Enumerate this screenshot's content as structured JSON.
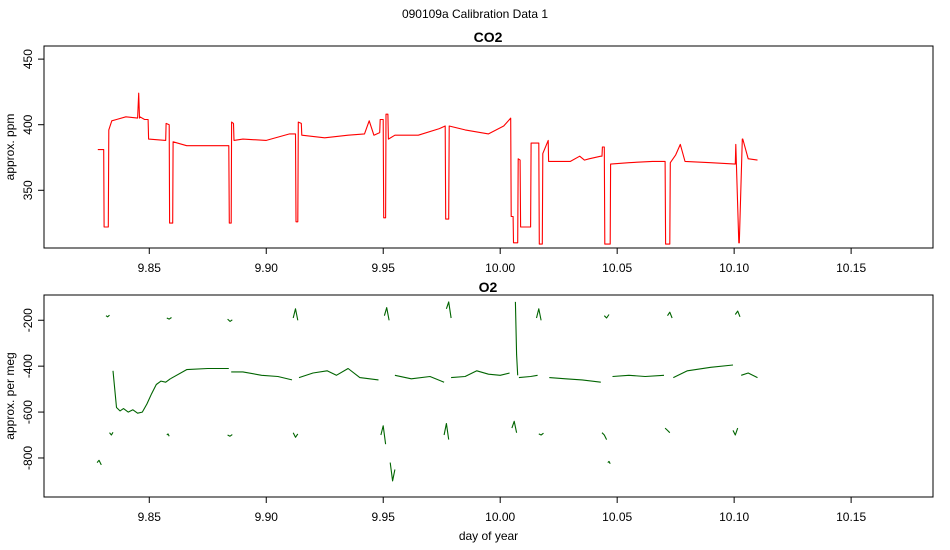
{
  "figure": {
    "suptitle": "090109a   Calibration Data 1"
  },
  "chart_data": [
    {
      "type": "line",
      "title": "CO2",
      "xlabel": "",
      "ylabel": "approx. ppm",
      "xlim": [
        9.805,
        10.185
      ],
      "ylim": [
        306,
        460
      ],
      "xticks": [
        9.85,
        9.9,
        9.95,
        10.0,
        10.05,
        10.1,
        10.15
      ],
      "xtick_labels": [
        "9.85",
        "9.90",
        "9.95",
        "10.00",
        "10.05",
        "10.10",
        "10.15"
      ],
      "yticks": [
        350,
        400,
        450
      ],
      "ytick_labels": [
        "350",
        "400",
        "450"
      ],
      "grid": false,
      "series": [
        {
          "color": "#ff0000",
          "x": [
            9.828,
            9.8305,
            9.8307,
            9.8325,
            9.8327,
            9.834,
            9.836,
            9.84,
            9.845,
            9.8455,
            9.8458,
            9.846,
            9.848,
            9.8495,
            9.8497,
            9.857,
            9.8572,
            9.8585,
            9.8587,
            9.86,
            9.8602,
            9.866,
            9.875,
            9.884,
            9.8842,
            9.885,
            9.8852,
            9.886,
            9.8862,
            9.89,
            9.9,
            9.91,
            9.9125,
            9.9127,
            9.9135,
            9.9137,
            9.915,
            9.9152,
            9.925,
            9.935,
            9.942,
            9.944,
            9.946,
            9.9485,
            9.9487,
            9.95,
            9.9502,
            9.951,
            9.9512,
            9.952,
            9.9522,
            9.955,
            9.965,
            9.974,
            9.9765,
            9.9767,
            9.978,
            9.9782,
            9.985,
            9.995,
            10.0015,
            10.0045,
            10.0047,
            10.0055,
            10.0057,
            10.0075,
            10.0077,
            10.0085,
            10.0087,
            10.013,
            10.0132,
            10.0165,
            10.0167,
            10.018,
            10.0182,
            10.0205,
            10.0207,
            10.03,
            10.034,
            10.036,
            10.038,
            10.043,
            10.0435,
            10.0437,
            10.0445,
            10.0447,
            10.047,
            10.0472,
            10.055,
            10.065,
            10.0705,
            10.0707,
            10.0725,
            10.0727,
            10.075,
            10.077,
            10.079,
            10.09,
            10.1005,
            10.1007,
            10.102,
            10.1022,
            10.1035,
            10.1037,
            10.106,
            10.1062,
            10.11
          ],
          "y": [
            381,
            381,
            322,
            322,
            396,
            403,
            404,
            406,
            405,
            424,
            405,
            406,
            404,
            404,
            389,
            388,
            401,
            400,
            325,
            325,
            387,
            384,
            384,
            384,
            325,
            325,
            402,
            401,
            388,
            389,
            388,
            393,
            393,
            326,
            326,
            402,
            401,
            392,
            390,
            392,
            393,
            403,
            392,
            394,
            404,
            404,
            329,
            329,
            408,
            408,
            389,
            392,
            392,
            397,
            399,
            328,
            328,
            399,
            396,
            393,
            399,
            405,
            330,
            330,
            310,
            310,
            374,
            373,
            322,
            322,
            386,
            386,
            309,
            309,
            378,
            388,
            372,
            372,
            376,
            373,
            374,
            376,
            376,
            383,
            383,
            309,
            309,
            370,
            371,
            372,
            372,
            309,
            309,
            371,
            377,
            385,
            372,
            371,
            370,
            385,
            310,
            310,
            389,
            389,
            374,
            374,
            373
          ]
        }
      ]
    },
    {
      "type": "line",
      "title": "O2",
      "xlabel": "day of year",
      "ylabel": "approx. per meg",
      "xlim": [
        9.805,
        10.185
      ],
      "ylim": [
        -970,
        -90
      ],
      "xticks": [
        9.85,
        9.9,
        9.95,
        10.0,
        10.05,
        10.1,
        10.15
      ],
      "xtick_labels": [
        "9.85",
        "9.90",
        "9.95",
        "10.00",
        "10.05",
        "10.10",
        "10.15"
      ],
      "yticks": [
        -800,
        -600,
        -400,
        -200
      ],
      "ytick_labels": [
        "-800",
        "-600",
        "-400",
        "-200"
      ],
      "grid": false,
      "series": [
        {
          "color": "#006400",
          "segments": [
            {
              "x": [
                9.8277,
                9.8285,
                9.8295
              ],
              "y": [
                -820,
                -810,
                -830
              ]
            },
            {
              "x": [
                9.8315,
                9.8322,
                9.833
              ],
              "y": [
                -180,
                -185,
                -178
              ]
            },
            {
              "x": [
                9.833,
                9.8338,
                9.8345
              ],
              "y": [
                -690,
                -700,
                -688
              ]
            },
            {
              "x": [
                9.8345,
                9.836,
                9.8375,
                9.839,
                9.841,
                9.843,
                9.845,
                9.847,
                9.849,
                9.851,
                9.853,
                9.855,
                9.857,
                9.859
              ],
              "y": [
                -420,
                -580,
                -595,
                -585,
                -600,
                -590,
                -605,
                -600,
                -565,
                -520,
                -480,
                -465,
                -470,
                -455
              ]
            },
            {
              "x": [
                9.8575,
                9.858,
                9.8585
              ],
              "y": [
                -700,
                -695,
                -705
              ]
            },
            {
              "x": [
                9.8575,
                9.8585,
                9.8595
              ],
              "y": [
                -190,
                -195,
                -188
              ]
            },
            {
              "x": [
                9.859,
                9.866,
                9.875,
                9.884
              ],
              "y": [
                -455,
                -415,
                -410,
                -410
              ]
            },
            {
              "x": [
                9.8835,
                9.8845,
                9.8855
              ],
              "y": [
                -195,
                -205,
                -198
              ]
            },
            {
              "x": [
                9.8835,
                9.8845,
                9.8855
              ],
              "y": [
                -700,
                -705,
                -698
              ]
            },
            {
              "x": [
                9.885,
                9.89,
                9.898,
                9.905,
                9.911
              ],
              "y": [
                -425,
                -425,
                -440,
                -445,
                -460
              ]
            },
            {
              "x": [
                9.9115,
                9.9125,
                9.9135
              ],
              "y": [
                -190,
                -150,
                -200
              ]
            },
            {
              "x": [
                9.9115,
                9.9125,
                9.9135
              ],
              "y": [
                -690,
                -710,
                -695
              ]
            },
            {
              "x": [
                9.914,
                9.92,
                9.926,
                9.93,
                9.935,
                9.94,
                9.948
              ],
              "y": [
                -450,
                -430,
                -420,
                -440,
                -410,
                -450,
                -460
              ]
            },
            {
              "x": [
                9.949,
                9.95,
                9.951
              ],
              "y": [
                -700,
                -660,
                -740
              ]
            },
            {
              "x": [
                9.9505,
                9.9515,
                9.9525
              ],
              "y": [
                -180,
                -145,
                -200
              ]
            },
            {
              "x": [
                9.953,
                9.954,
                9.955
              ],
              "y": [
                -820,
                -900,
                -850
              ]
            },
            {
              "x": [
                9.955,
                9.962,
                9.97,
                9.976
              ],
              "y": [
                -440,
                -455,
                -445,
                -470
              ]
            },
            {
              "x": [
                9.976,
                9.977,
                9.978
              ],
              "y": [
                -700,
                -650,
                -720
              ]
            },
            {
              "x": [
                9.977,
                9.978,
                9.979
              ],
              "y": [
                -150,
                -120,
                -190
              ]
            },
            {
              "x": [
                9.979,
                9.985,
                9.99,
                9.995,
                10.0,
                10.004
              ],
              "y": [
                -450,
                -445,
                -420,
                -435,
                -440,
                -430
              ]
            },
            {
              "x": [
                10.005,
                10.006,
                10.007
              ],
              "y": [
                -670,
                -640,
                -690
              ]
            },
            {
              "x": [
                10.0065,
                10.007,
                10.0075
              ],
              "y": [
                -120,
                -350,
                -440
              ]
            },
            {
              "x": [
                10.008,
                10.013,
                10.016
              ],
              "y": [
                -450,
                -445,
                -440
              ]
            },
            {
              "x": [
                10.0155,
                10.0165,
                10.0175
              ],
              "y": [
                -190,
                -150,
                -200
              ]
            },
            {
              "x": [
                10.0165,
                10.0175,
                10.0185
              ],
              "y": [
                -695,
                -700,
                -692
              ]
            },
            {
              "x": [
                10.021,
                10.028,
                10.035,
                10.043
              ],
              "y": [
                -450,
                -455,
                -460,
                -470
              ]
            },
            {
              "x": [
                10.0435,
                10.0445,
                10.0455
              ],
              "y": [
                -690,
                -700,
                -720
              ]
            },
            {
              "x": [
                10.0445,
                10.0455,
                10.0465
              ],
              "y": [
                -180,
                -190,
                -175
              ]
            },
            {
              "x": [
                10.046,
                10.0465,
                10.047
              ],
              "y": [
                -820,
                -815,
                -825
              ]
            },
            {
              "x": [
                10.048,
                10.055,
                10.062,
                10.07
              ],
              "y": [
                -445,
                -440,
                -445,
                -440
              ]
            },
            {
              "x": [
                10.0705,
                10.0715,
                10.0725
              ],
              "y": [
                -670,
                -680,
                -690
              ]
            },
            {
              "x": [
                10.0715,
                10.0725,
                10.0735
              ],
              "y": [
                -180,
                -165,
                -190
              ]
            },
            {
              "x": [
                10.074,
                10.08,
                10.09,
                10.0995
              ],
              "y": [
                -450,
                -420,
                -405,
                -395
              ]
            },
            {
              "x": [
                10.0995,
                10.1005,
                10.1015
              ],
              "y": [
                -680,
                -700,
                -670
              ]
            },
            {
              "x": [
                10.1005,
                10.1015,
                10.1025
              ],
              "y": [
                -175,
                -160,
                -185
              ]
            },
            {
              "x": [
                10.103,
                10.106,
                10.11
              ],
              "y": [
                -440,
                -430,
                -450
              ]
            }
          ]
        }
      ]
    }
  ]
}
